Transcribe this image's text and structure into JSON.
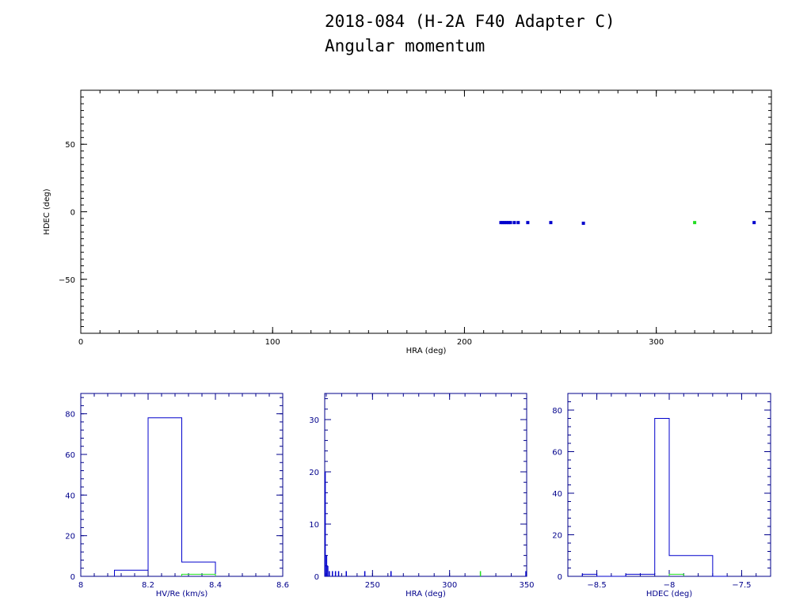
{
  "title": {
    "line1": "2018-084 (H-2A F40 Adapter C)",
    "line2": "Angular momentum"
  },
  "colors": {
    "main_axes": "#000000",
    "hist_axes": "#00008b",
    "primary": "#0000cc",
    "secondary": "#22dd22"
  },
  "chart_data": [
    {
      "type": "scatter",
      "xlabel": "HRA (deg)",
      "ylabel": "HDEC (deg)",
      "xlim": [
        0,
        360
      ],
      "ylim": [
        -90,
        90
      ],
      "xticks": [
        0,
        100,
        200,
        300
      ],
      "yticks": [
        -50,
        0,
        50
      ],
      "series": [
        {
          "color_key": "primary",
          "points": [
            [
              219,
              -8
            ],
            [
              220,
              -8
            ],
            [
              221,
              -8
            ],
            [
              222,
              -8
            ],
            [
              223,
              -8
            ],
            [
              224,
              -8
            ],
            [
              226,
              -8
            ],
            [
              228,
              -8
            ],
            [
              233,
              -8
            ],
            [
              245,
              -8
            ],
            [
              262,
              -8.5
            ],
            [
              351,
              -8
            ]
          ]
        },
        {
          "color_key": "secondary",
          "points": [
            [
              320,
              -8
            ]
          ]
        }
      ]
    },
    {
      "type": "histogram",
      "xlabel": "HV/Re (km/s)",
      "xlim": [
        8,
        8.6
      ],
      "ylim": [
        0,
        90
      ],
      "xticks": [
        8,
        8.2,
        8.4,
        8.6
      ],
      "xtick_labels": [
        "8",
        "8.2",
        "8.4",
        "8.6"
      ],
      "yticks": [
        0,
        20,
        40,
        60,
        80
      ],
      "series": [
        {
          "color_key": "primary",
          "edges": [
            8.1,
            8.2,
            8.3,
            8.4
          ],
          "counts": [
            3,
            78,
            7
          ]
        },
        {
          "color_key": "secondary",
          "edges": [
            8.3,
            8.4
          ],
          "counts": [
            1
          ]
        }
      ]
    },
    {
      "type": "histogram",
      "xlabel": "HRA (deg)",
      "xlim": [
        219,
        350
      ],
      "ylim": [
        0,
        35
      ],
      "xticks": [
        250,
        300,
        350
      ],
      "xtick_labels": [
        "250",
        "300",
        "350"
      ],
      "yticks": [
        0,
        10,
        20,
        30
      ],
      "spikes": [
        {
          "color_key": "primary",
          "x": 219.3,
          "count": 20
        },
        {
          "color_key": "primary",
          "x": 220.2,
          "count": 4
        },
        {
          "color_key": "primary",
          "x": 221,
          "count": 2
        },
        {
          "color_key": "primary",
          "x": 222,
          "count": 1
        },
        {
          "color_key": "primary",
          "x": 224,
          "count": 1
        },
        {
          "color_key": "primary",
          "x": 226,
          "count": 1
        },
        {
          "color_key": "primary",
          "x": 228,
          "count": 1
        },
        {
          "color_key": "primary",
          "x": 233,
          "count": 1
        },
        {
          "color_key": "primary",
          "x": 245,
          "count": 1
        },
        {
          "color_key": "primary",
          "x": 262,
          "count": 1
        },
        {
          "color_key": "primary",
          "x": 349.5,
          "count": 1
        },
        {
          "color_key": "secondary",
          "x": 320,
          "count": 1
        }
      ]
    },
    {
      "type": "histogram",
      "xlabel": "HDEC (deg)",
      "xlim": [
        -8.7,
        -7.3
      ],
      "ylim": [
        0,
        88
      ],
      "xticks": [
        -8.5,
        -8,
        -7.5
      ],
      "xtick_labels": [
        "−8.5",
        "−8",
        "−7.5]"
      ],
      "yticks": [
        0,
        20,
        40,
        60,
        80
      ],
      "series": [
        {
          "color_key": "primary",
          "edges": [
            -8.6,
            -8.5,
            -8.4,
            -8.3,
            -8.2,
            -8.1,
            -8.0,
            -7.9,
            -7.8,
            -7.7,
            -7.6
          ],
          "counts": [
            1,
            0,
            0,
            1,
            1,
            76,
            10,
            10,
            10,
            0
          ]
        },
        {
          "color_key": "secondary",
          "edges": [
            -8.0,
            -7.9
          ],
          "counts": [
            1
          ]
        }
      ]
    }
  ]
}
